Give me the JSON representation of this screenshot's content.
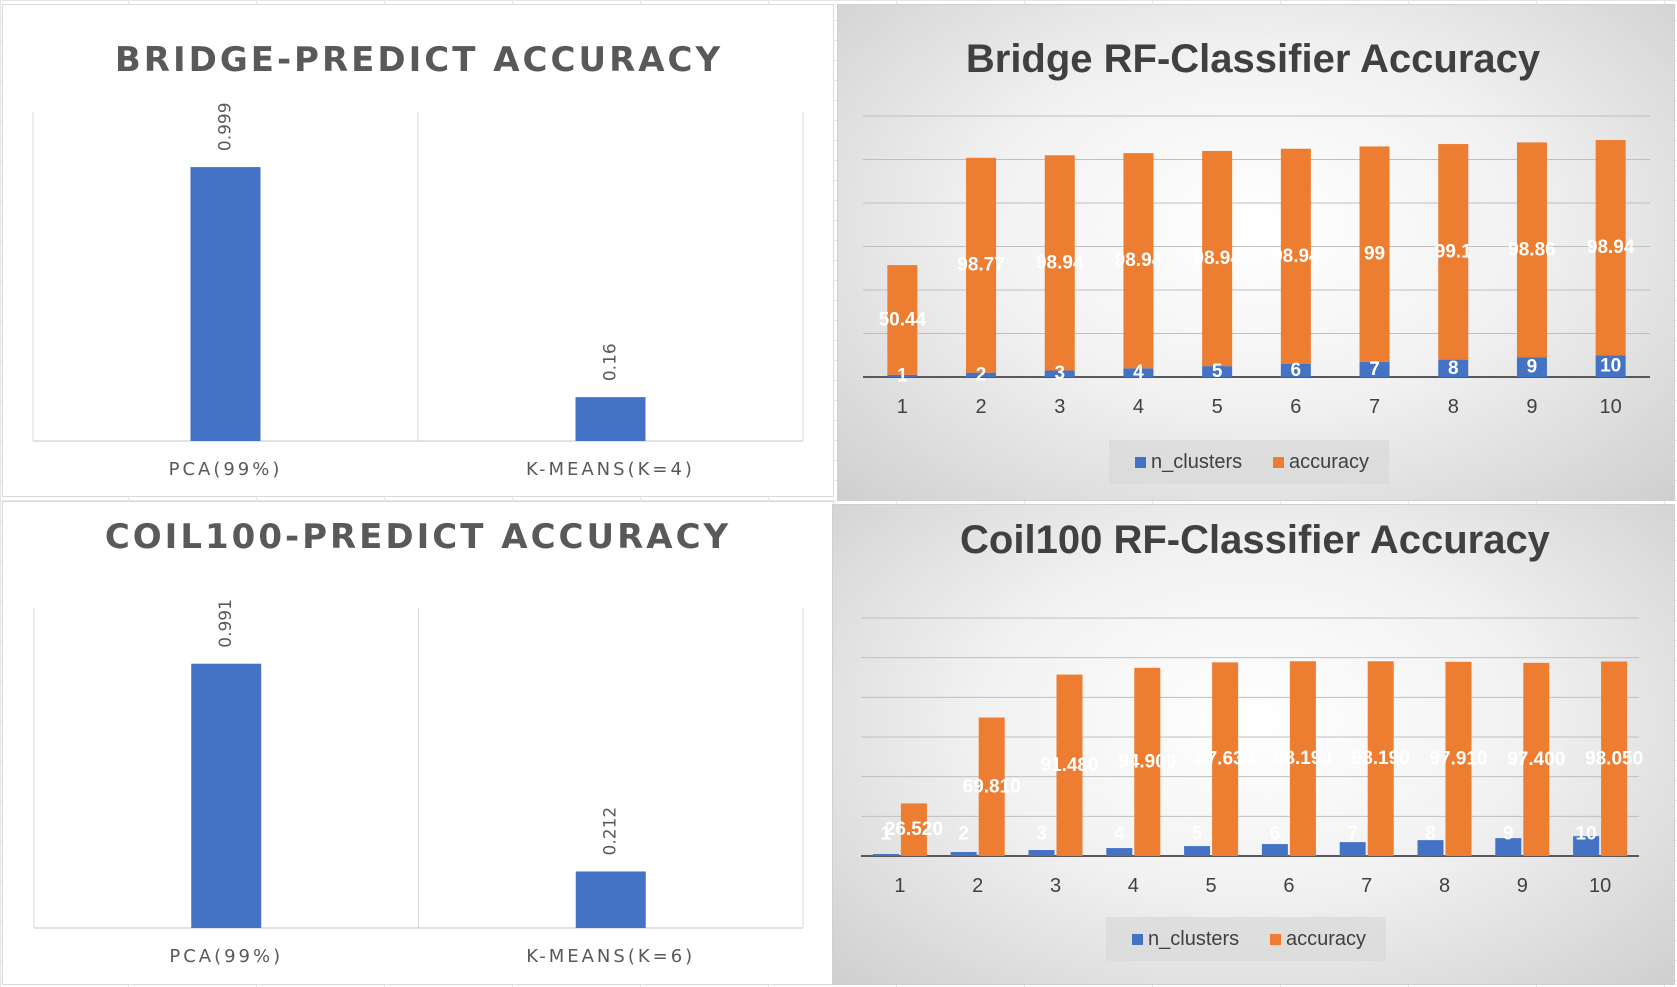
{
  "chart_data": [
    {
      "type": "bar",
      "title": "BRIDGE-PREDICT ACCURACY",
      "categories": [
        "PCA(99%)",
        "K-MEANS(K=4)"
      ],
      "values": [
        0.999,
        0.16
      ],
      "value_labels": [
        "0.999",
        "0.16"
      ],
      "ylim": [
        0,
        1.2
      ],
      "grid": false,
      "colors": {
        "bar": "#4472C4"
      }
    },
    {
      "type": "bar",
      "title": "Bridge RF-Classifier Accuracy",
      "categories": [
        "1",
        "2",
        "3",
        "4",
        "5",
        "6",
        "7",
        "8",
        "9",
        "10"
      ],
      "series": [
        {
          "name": "n_clusters",
          "values": [
            1,
            2,
            3,
            4,
            5,
            6,
            7,
            8,
            9,
            10
          ],
          "labels": [
            "1",
            "2",
            "3",
            "4",
            "5",
            "6",
            "7",
            "8",
            "9",
            "10"
          ]
        },
        {
          "name": "accuracy",
          "values": [
            50.44,
            98.77,
            98.94,
            98.94,
            98.94,
            98.94,
            99,
            99.1,
            98.86,
            98.94
          ],
          "labels": [
            "50.44",
            "98.77",
            "98.94",
            "98.94",
            "98.94",
            "98.94",
            "99",
            "99.1",
            "98.86",
            "98.94"
          ]
        }
      ],
      "stacked": true,
      "ylim": [
        0,
        120
      ],
      "grid": true,
      "legend": "bottom",
      "colors": {
        "n_clusters": "#4472C4",
        "accuracy": "#ED7D31"
      }
    },
    {
      "type": "bar",
      "title": "COIL100-PREDICT ACCURACY",
      "categories": [
        "PCA(99%)",
        "K-MEANS(K=6)"
      ],
      "values": [
        0.991,
        0.212
      ],
      "value_labels": [
        "0.991",
        "0.212"
      ],
      "ylim": [
        0,
        1.2
      ],
      "grid": false,
      "colors": {
        "bar": "#4472C4"
      }
    },
    {
      "type": "bar",
      "title": "Coil100 RF-Classifier Accuracy",
      "categories": [
        "1",
        "2",
        "3",
        "4",
        "5",
        "6",
        "7",
        "8",
        "9",
        "10"
      ],
      "series": [
        {
          "name": "n_clusters",
          "values": [
            1,
            2,
            3,
            4,
            5,
            6,
            7,
            8,
            9,
            10
          ],
          "labels": [
            "1",
            "2",
            "3",
            "4",
            "5",
            "6",
            "7",
            "8",
            "9",
            "10"
          ]
        },
        {
          "name": "accuracy",
          "values": [
            26.52,
            69.81,
            91.48,
            94.9,
            97.63,
            98.19,
            98.19,
            97.91,
            97.4,
            98.05
          ],
          "labels": [
            "26.520",
            "69.810",
            "91.480",
            "94.900",
            "97.630",
            "98.190",
            "98.190",
            "97.910",
            "97.400",
            "98.050"
          ]
        }
      ],
      "stacked": false,
      "ylim": [
        0,
        120
      ],
      "grid": true,
      "legend": "bottom",
      "colors": {
        "n_clusters": "#4472C4",
        "accuracy": "#ED7D31"
      }
    }
  ]
}
